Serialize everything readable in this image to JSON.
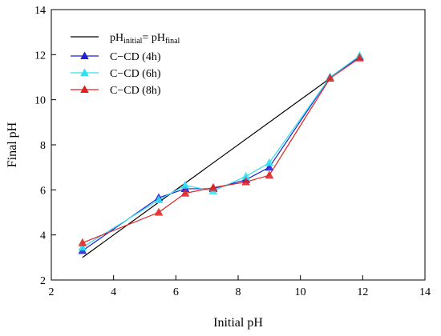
{
  "chart_data": {
    "type": "line",
    "xlabel": "Initial pH",
    "ylabel": "Final pH",
    "xlim": [
      2,
      14
    ],
    "ylim": [
      2,
      14
    ],
    "x_ticks": [
      2,
      4,
      6,
      8,
      10,
      12,
      14
    ],
    "y_ticks": [
      2,
      4,
      6,
      8,
      10,
      12,
      14
    ],
    "grid": false,
    "legend_position": "top-left",
    "reference_line": {
      "label_main": "pH",
      "label_sub1": "initial",
      "label_eq": "= pH",
      "label_sub2": "final",
      "x": [
        3,
        11
      ],
      "y": [
        3,
        11
      ],
      "color": "#000000"
    },
    "series": [
      {
        "name": "C−CD (4h)",
        "color": "#1f1fd6",
        "marker": "triangle",
        "x": [
          3.0,
          5.45,
          6.3,
          7.2,
          8.25,
          9.0,
          10.95,
          11.9
        ],
        "y": [
          3.3,
          5.65,
          6.05,
          6.05,
          6.45,
          7.0,
          11.0,
          11.9
        ]
      },
      {
        "name": "C−CD (6h)",
        "color": "#33e0f0",
        "marker": "triangle",
        "x": [
          3.0,
          5.45,
          6.3,
          7.2,
          8.25,
          9.0,
          10.95,
          11.9
        ],
        "y": [
          3.45,
          5.55,
          6.2,
          5.95,
          6.6,
          7.2,
          11.0,
          11.95
        ]
      },
      {
        "name": "C−CD (8h)",
        "color": "#e02020",
        "marker": "triangle",
        "x": [
          3.0,
          5.45,
          6.3,
          7.2,
          8.25,
          9.0,
          10.95,
          11.9
        ],
        "y": [
          3.65,
          5.0,
          5.85,
          6.1,
          6.35,
          6.65,
          10.95,
          11.85
        ]
      }
    ]
  }
}
